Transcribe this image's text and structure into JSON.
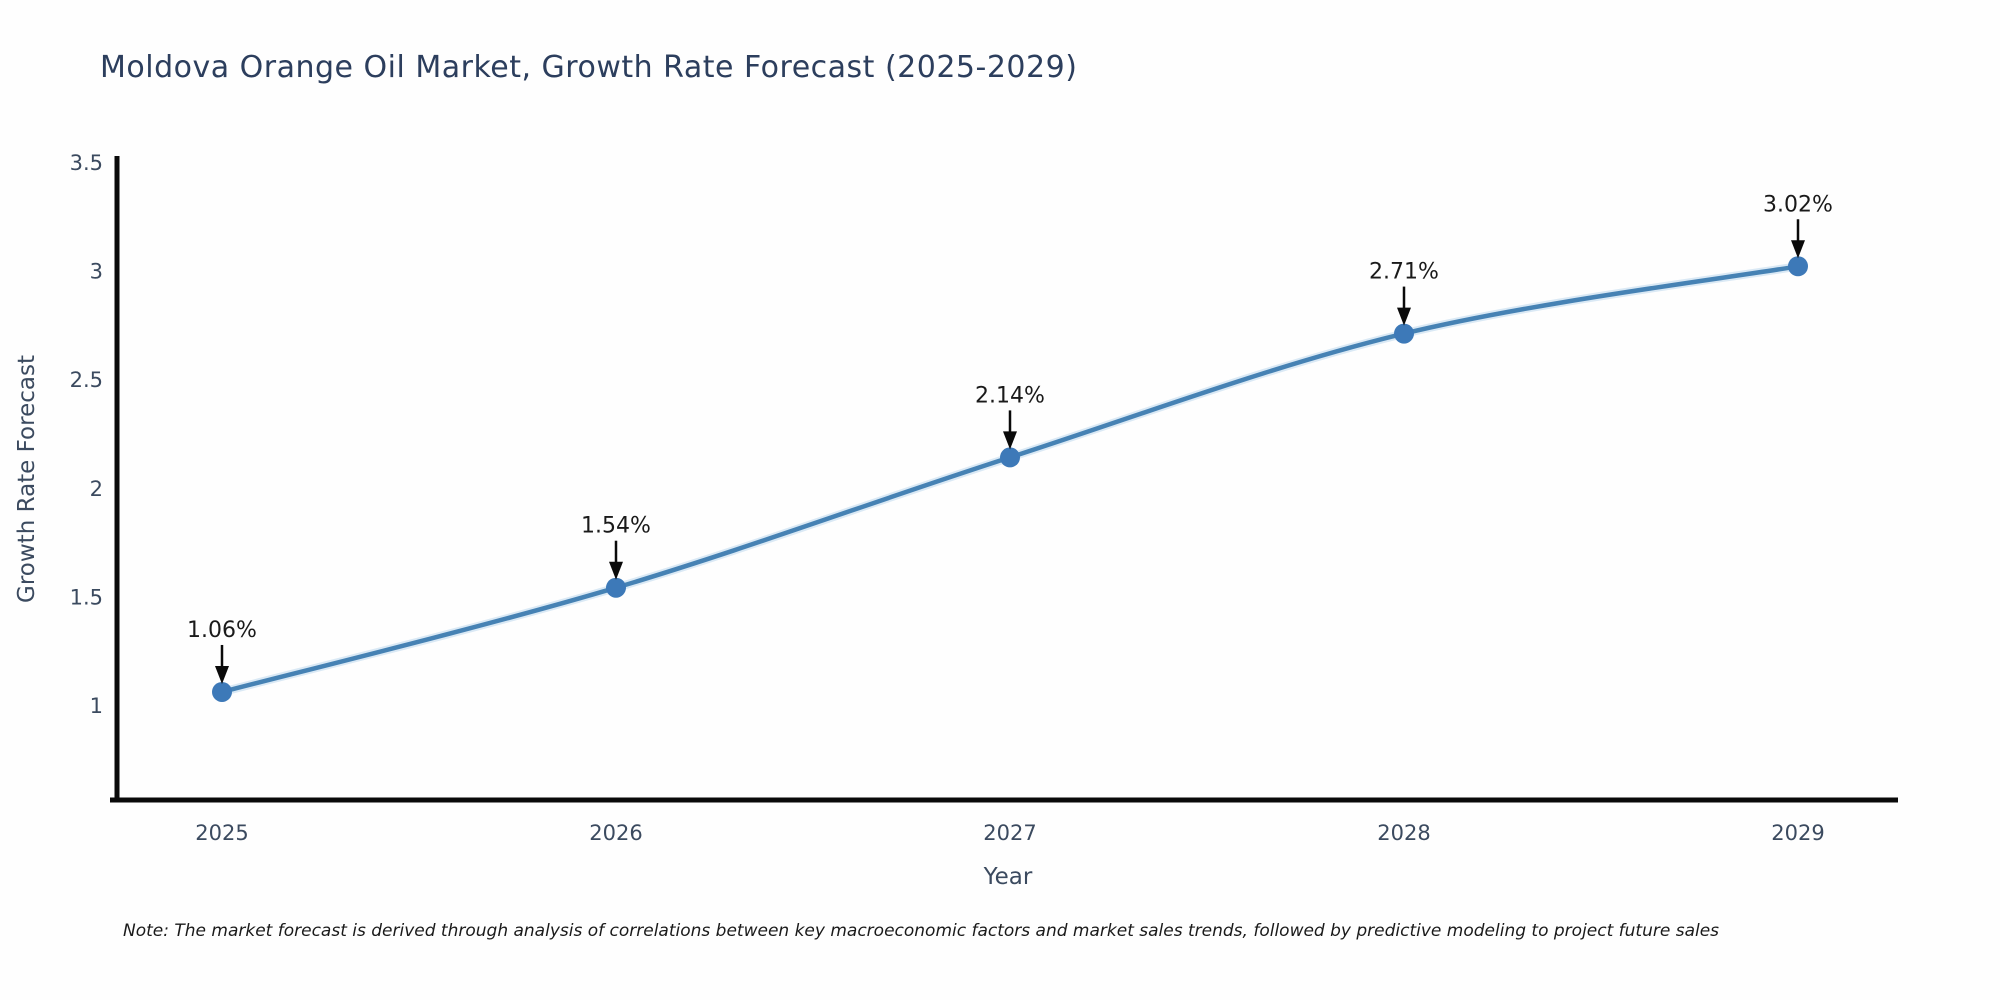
{
  "chart_data": {
    "type": "line",
    "title": "Moldova Orange Oil Market, Growth Rate Forecast (2025-2029)",
    "xlabel": "Year",
    "ylabel": "Growth Rate Forecast",
    "x": [
      2025,
      2026,
      2027,
      2028,
      2029
    ],
    "x_tick_labels": [
      "2025",
      "2026",
      "2027",
      "2028",
      "2029"
    ],
    "values": [
      1.06,
      1.54,
      2.14,
      2.71,
      3.02
    ],
    "point_labels": [
      "1.06%",
      "1.54%",
      "2.14%",
      "2.71%",
      "3.02%"
    ],
    "y_ticks": [
      1,
      1.5,
      2,
      2.5,
      3,
      3.5
    ],
    "y_tick_labels": [
      "1",
      "1.5",
      "2",
      "2.5",
      "3",
      "3.5"
    ],
    "ylim": [
      0.56,
      3.53
    ],
    "grid": false,
    "legend": "none",
    "line_shape": "spline",
    "colors": {
      "line": "#4682b4",
      "line_halo": "#bcd7ec",
      "marker": "#3d79b8",
      "spine": "#0a0a0a",
      "tick_text": "#3b4a5f",
      "axis_title_text": "#3b4a5f",
      "title_text": "#2c3e5d",
      "annotation_text": "#1a1a1a",
      "arrow": "#0a0a0a"
    },
    "note": "Note: The market forecast is derived through analysis of correlations between key macroeconomic factors and market sales trends, followed by predictive modeling to project future sales"
  }
}
